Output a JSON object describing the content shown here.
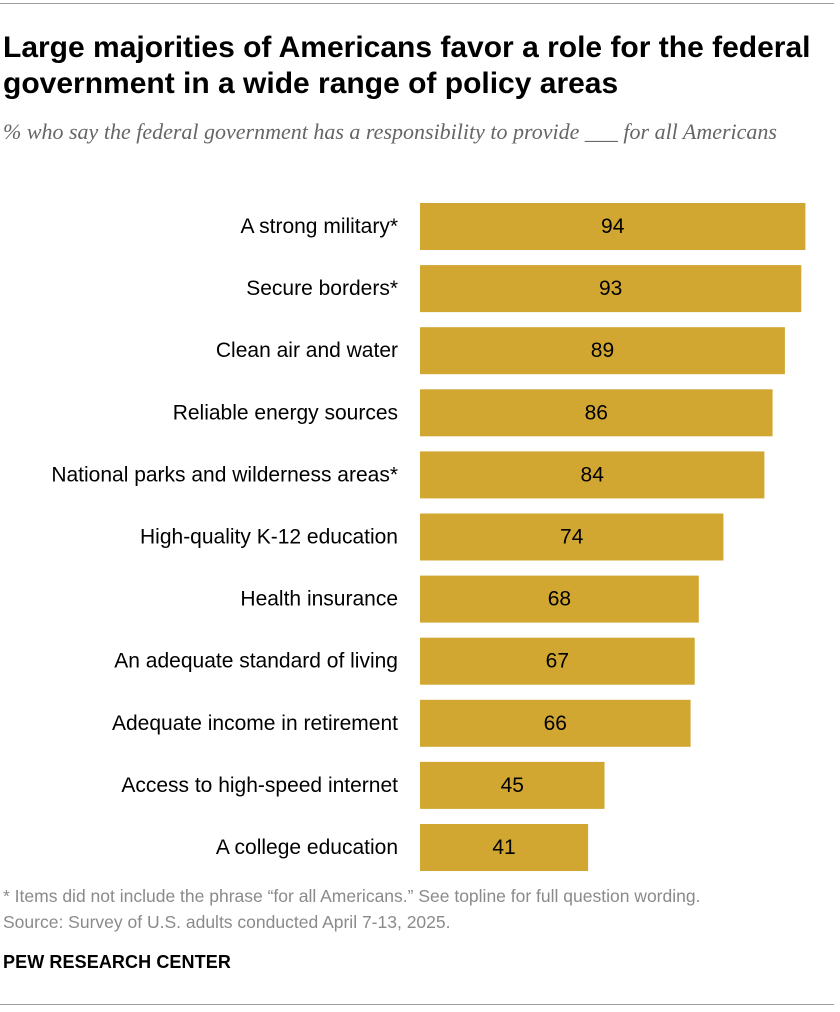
{
  "header": {
    "title": "Large majorities of Americans favor a role for the federal government in a wide range of policy areas",
    "subtitle": "% who say the federal government has a responsibility to provide ___ for all Americans"
  },
  "chart_data": {
    "type": "bar",
    "orientation": "horizontal",
    "categories": [
      "A strong military*",
      "Secure borders*",
      "Clean air and water",
      "Reliable energy sources",
      "National parks and wilderness areas*",
      "High-quality K-12 education",
      "Health insurance",
      "An adequate standard of living",
      "Adequate income in retirement",
      "Access to high-speed internet",
      "A college education"
    ],
    "values": [
      94,
      93,
      89,
      86,
      84,
      74,
      68,
      67,
      66,
      45,
      41
    ],
    "xlim": [
      0,
      100
    ],
    "bar_color": "#d1a731",
    "grid": false,
    "data_labels": true
  },
  "notes": {
    "footnote": "* Items did not include the phrase “for all Americans.” See topline for full question wording.",
    "source": "Source: Survey of U.S. adults conducted April 7-13, 2025."
  },
  "brand": "PEW RESEARCH CENTER"
}
